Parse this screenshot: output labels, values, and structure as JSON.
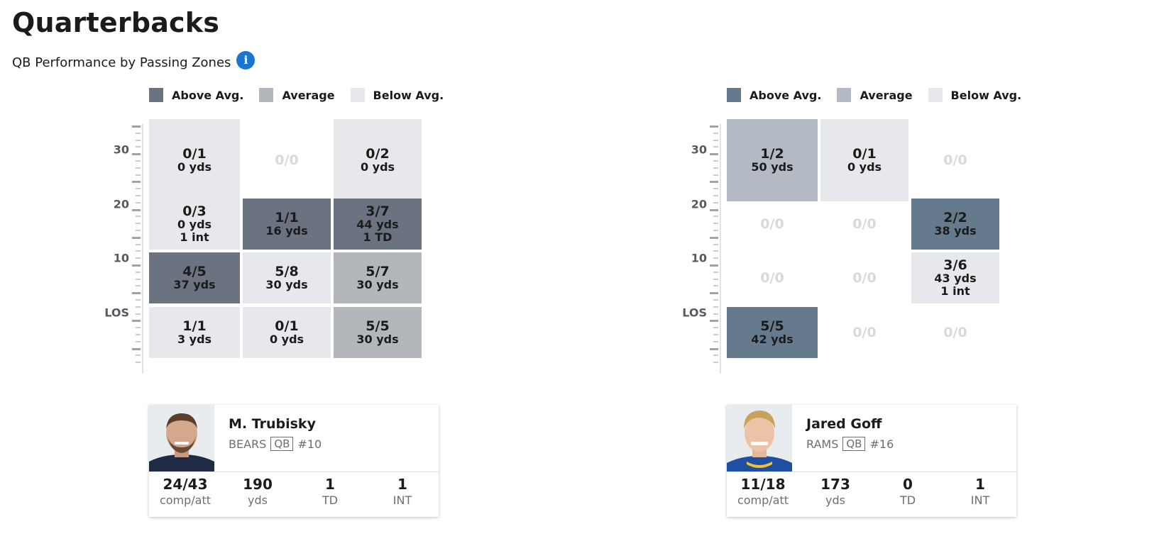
{
  "page": {
    "title": "Quarterbacks",
    "subtitle": "QB Performance by Passing Zones",
    "info_icon": "info-icon"
  },
  "colors": {
    "above_avg": "#6b7280",
    "above_avg_rams": "#667a8e",
    "average": "#b3b7bc",
    "average_rams": "#b3bac4",
    "below_avg": "#e6e8eb",
    "info_blue": "#1976d2"
  },
  "legend": {
    "above": "Above Avg.",
    "average": "Average",
    "below": "Below Avg."
  },
  "axis_labels": [
    "30",
    "20",
    "10",
    "LOS"
  ],
  "players": [
    {
      "name": "M. Trubisky",
      "team": "BEARS",
      "position": "QB",
      "number": "#10",
      "photo_icon": "player-headshot",
      "stats": [
        {
          "value": "24/43",
          "label": "comp/att"
        },
        {
          "value": "190",
          "label": "yds"
        },
        {
          "value": "1",
          "label": "TD"
        },
        {
          "value": "1",
          "label": "INT"
        }
      ],
      "zones": [
        [
          {
            "main": "0/1",
            "yds": "0 yds",
            "extra": "",
            "level": "below"
          },
          {
            "main": "0/0",
            "yds": "",
            "extra": "",
            "level": "empty"
          },
          {
            "main": "0/2",
            "yds": "0 yds",
            "extra": "",
            "level": "below"
          }
        ],
        [
          {
            "main": "0/3",
            "yds": "0 yds",
            "extra": "1 int",
            "level": "below"
          },
          {
            "main": "1/1",
            "yds": "16 yds",
            "extra": "",
            "level": "above"
          },
          {
            "main": "3/7",
            "yds": "44 yds",
            "extra": "1 TD",
            "level": "above"
          }
        ],
        [
          {
            "main": "4/5",
            "yds": "37 yds",
            "extra": "",
            "level": "above"
          },
          {
            "main": "5/8",
            "yds": "30 yds",
            "extra": "",
            "level": "below"
          },
          {
            "main": "5/7",
            "yds": "30 yds",
            "extra": "",
            "level": "average"
          }
        ],
        [
          {
            "main": "1/1",
            "yds": "3 yds",
            "extra": "",
            "level": "below"
          },
          {
            "main": "0/1",
            "yds": "0 yds",
            "extra": "",
            "level": "below"
          },
          {
            "main": "5/5",
            "yds": "30 yds",
            "extra": "",
            "level": "average"
          }
        ]
      ]
    },
    {
      "name": "Jared Goff",
      "team": "RAMS",
      "position": "QB",
      "number": "#16",
      "photo_icon": "player-headshot",
      "stats": [
        {
          "value": "11/18",
          "label": "comp/att"
        },
        {
          "value": "173",
          "label": "yds"
        },
        {
          "value": "0",
          "label": "TD"
        },
        {
          "value": "1",
          "label": "INT"
        }
      ],
      "zones": [
        [
          {
            "main": "1/2",
            "yds": "50 yds",
            "extra": "",
            "level": "average"
          },
          {
            "main": "0/1",
            "yds": "0 yds",
            "extra": "",
            "level": "below"
          },
          {
            "main": "0/0",
            "yds": "",
            "extra": "",
            "level": "empty"
          }
        ],
        [
          {
            "main": "0/0",
            "yds": "",
            "extra": "",
            "level": "empty"
          },
          {
            "main": "0/0",
            "yds": "",
            "extra": "",
            "level": "empty"
          },
          {
            "main": "2/2",
            "yds": "38 yds",
            "extra": "",
            "level": "above"
          }
        ],
        [
          {
            "main": "0/0",
            "yds": "",
            "extra": "",
            "level": "empty"
          },
          {
            "main": "0/0",
            "yds": "",
            "extra": "",
            "level": "empty"
          },
          {
            "main": "3/6",
            "yds": "43 yds",
            "extra": "1 int",
            "level": "below"
          }
        ],
        [
          {
            "main": "5/5",
            "yds": "42 yds",
            "extra": "",
            "level": "above"
          },
          {
            "main": "0/0",
            "yds": "",
            "extra": "",
            "level": "empty"
          },
          {
            "main": "0/0",
            "yds": "",
            "extra": "",
            "level": "empty"
          }
        ]
      ]
    }
  ]
}
